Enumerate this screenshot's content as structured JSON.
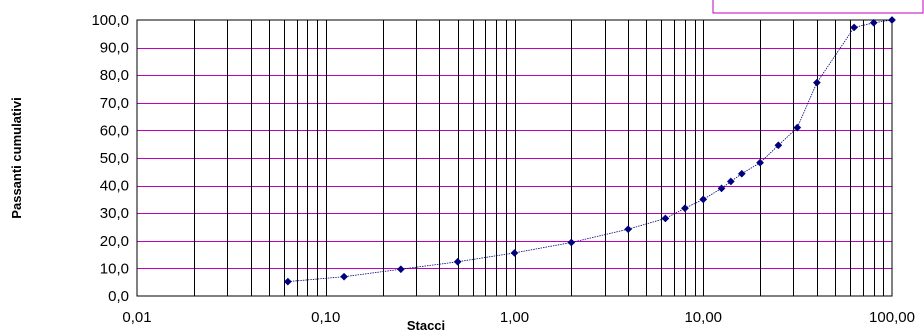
{
  "chart_data": {
    "type": "line",
    "title": "",
    "xlabel": "Stacci",
    "ylabel": "Passanti cumulativi",
    "x_scale": "log",
    "xlim": [
      0.01,
      100
    ],
    "ylim": [
      0,
      100
    ],
    "x_ticks": [
      "0,01",
      "0,10",
      "1,00",
      "10,00",
      "100,00"
    ],
    "y_ticks": [
      "0,0",
      "10,0",
      "20,0",
      "30,0",
      "40,0",
      "50,0",
      "60,0",
      "70,0",
      "80,0",
      "90,0",
      "100,0"
    ],
    "grid": true,
    "legend": "none",
    "colors": {
      "series": "#00007f",
      "grid_h": "#c000c0",
      "grid_v": "#000000",
      "legend_border": "#c000c0"
    },
    "series": [
      {
        "x": [
          0.063,
          0.125,
          0.25,
          0.5,
          1,
          2,
          4,
          6.3,
          8,
          10,
          12.5,
          14,
          16,
          20,
          25,
          31.5,
          40,
          63,
          80,
          100
        ],
        "y": [
          5.2,
          7.0,
          9.7,
          12.4,
          15.6,
          19.4,
          24.2,
          28.1,
          31.8,
          35.0,
          39.0,
          41.5,
          44.3,
          48.3,
          54.6,
          61.0,
          77.3,
          97.3,
          99.0,
          100.0
        ]
      }
    ]
  }
}
